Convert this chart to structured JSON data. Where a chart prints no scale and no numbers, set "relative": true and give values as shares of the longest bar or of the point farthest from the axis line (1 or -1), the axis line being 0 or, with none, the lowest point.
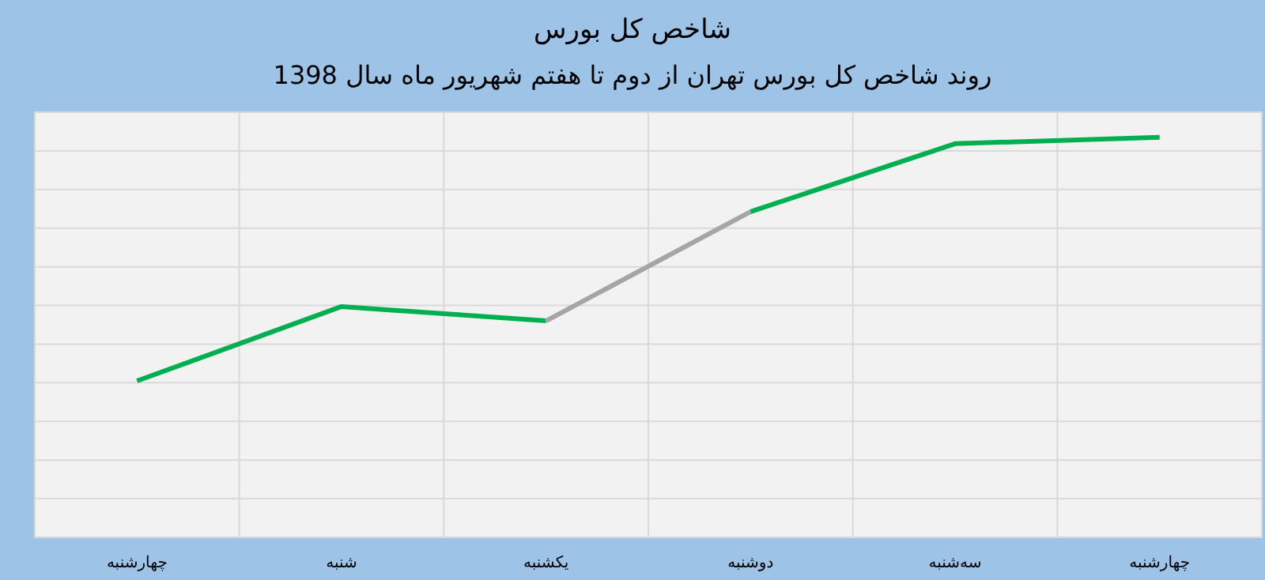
{
  "chart_data": {
    "type": "line",
    "title": "شاخص کل بورس",
    "subtitle": "روند شاخص کل بورس تهران از دوم تا هفتم شهریور ماه سال 1398",
    "categories": [
      "چهارشنبه",
      "شنبه",
      "یکشنبه",
      "دوشنبه",
      "سه‌شنبه",
      "چهارشنبه"
    ],
    "relative": true,
    "grid": true,
    "marker": "none",
    "line_style": "solid",
    "series": [
      {
        "color": "#00b050",
        "values": [
          0.391,
          0.577,
          0.541,
          null,
          null,
          null
        ]
      },
      {
        "color": "#a5a5a5",
        "values": [
          null,
          null,
          0.541,
          0.814,
          null,
          null
        ]
      },
      {
        "color": "#00b050",
        "values": [
          null,
          null,
          null,
          0.814,
          0.984,
          1
        ]
      }
    ]
  }
}
